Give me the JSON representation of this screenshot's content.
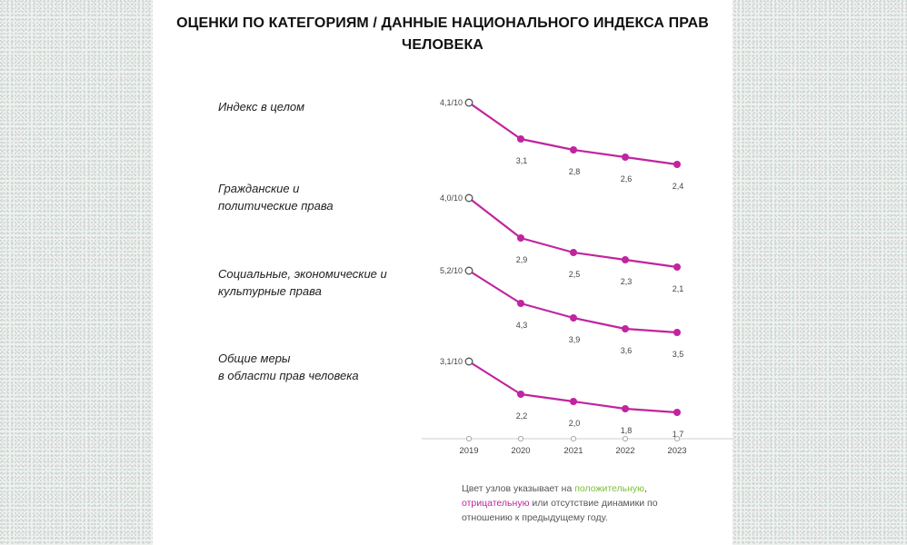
{
  "title_line1": "ОЦЕНКИ ПО КАТЕГОРИЯМ / ДАННЫЕ НАЦИОНАЛЬНОГО ИНДЕКСА ПРАВ",
  "title_line2": "ЧЕЛОВЕКА",
  "categories": [
    {
      "label_lines": [
        "Индекс в целом"
      ]
    },
    {
      "label_lines": [
        "Гражданские и",
        "политические права"
      ]
    },
    {
      "label_lines": [
        "Социальные, экономические и",
        "культурные права"
      ]
    },
    {
      "label_lines": [
        "Общие меры",
        "в области прав человека"
      ]
    }
  ],
  "note": {
    "part1": "Цвет узлов указывает на ",
    "positive": "положительную",
    "part2": ",",
    "negative": "отрицательную",
    "part3": " или ",
    "absence": "отсутствие",
    "part4": " динамики по отношению к предыдущему году."
  },
  "colors": {
    "line": "#c1249f",
    "node_negative": "#c1249f",
    "node_first": "#ffffff",
    "axis": "#cccccc"
  },
  "chart_data": {
    "type": "line",
    "x": [
      "2019",
      "2020",
      "2021",
      "2022",
      "2023"
    ],
    "series": [
      {
        "name": "Индекс в целом",
        "values": [
          4.1,
          3.1,
          2.8,
          2.6,
          2.4
        ],
        "labels": [
          "4,1/10",
          "3,1",
          "2,8",
          "2,6",
          "2,4"
        ]
      },
      {
        "name": "Гражданские и политические права",
        "values": [
          4.0,
          2.9,
          2.5,
          2.3,
          2.1
        ],
        "labels": [
          "4,0/10",
          "2,9",
          "2,5",
          "2,3",
          "2,1"
        ]
      },
      {
        "name": "Социальные, экономические и культурные права",
        "values": [
          5.2,
          4.3,
          3.9,
          3.6,
          3.5
        ],
        "labels": [
          "5,2/10",
          "4,3",
          "3,9",
          "3,6",
          "3,5"
        ]
      },
      {
        "name": "Общие меры в области прав человека",
        "values": [
          3.1,
          2.2,
          2.0,
          1.8,
          1.7
        ],
        "labels": [
          "3,1/10",
          "2,2",
          "2,0",
          "1,8",
          "1,7"
        ]
      }
    ]
  }
}
